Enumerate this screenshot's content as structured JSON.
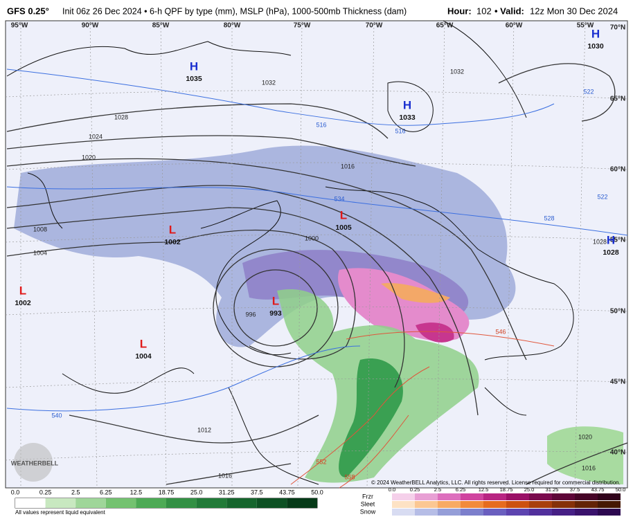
{
  "header": {
    "title": "GFS 0.25°",
    "subtitle": "Init 06z 26 Dec 2024 • 6-h QPF by type (mm), MSLP (hPa), 1000-500mb Thickness (dam)",
    "hour_label": "Hour:",
    "hour": "102",
    "valid_label": "• Valid:",
    "valid": "12z Mon 30 Dec 2024"
  },
  "map": {
    "longitudes": [
      "95°W",
      "90°W",
      "85°W",
      "80°W",
      "75°W",
      "70°W",
      "65°W",
      "60°W",
      "55°W"
    ],
    "latitudes": [
      "70°N",
      "65°N",
      "60°N",
      "55°N",
      "50°N",
      "45°N",
      "40°N"
    ],
    "pressure_centers": [
      {
        "type": "H",
        "value": "1035"
      },
      {
        "type": "H",
        "value": "1033"
      },
      {
        "type": "H",
        "value": "1030"
      },
      {
        "type": "H",
        "value": "1028"
      },
      {
        "type": "L",
        "value": "1005"
      },
      {
        "type": "L",
        "value": "1002"
      },
      {
        "type": "L",
        "value": "1002"
      },
      {
        "type": "L",
        "value": "993"
      },
      {
        "type": "L",
        "value": "1004"
      }
    ],
    "isobar_labels": [
      "1032",
      "1032",
      "1028",
      "1024",
      "1020",
      "1016",
      "1008",
      "1004",
      "1000",
      "996",
      "1012",
      "1016",
      "1020",
      "1016",
      "1028"
    ],
    "thickness_labels": [
      "522",
      "516",
      "516",
      "534",
      "528",
      "522",
      "540",
      "546",
      "552",
      "558"
    ]
  },
  "legend": {
    "rain_scale": [
      "0.0",
      "0.25",
      "2.5",
      "6.25",
      "12.5",
      "18.75",
      "25.0",
      "31.25",
      "37.5",
      "43.75",
      "50.0"
    ],
    "note": "All values represent liquid equivalent",
    "types": [
      "Frzr",
      "Sleet",
      "Snow"
    ],
    "mixed_scale": [
      "0.0",
      "0.25",
      "2.5",
      "6.25",
      "12.5",
      "18.75",
      "25.0",
      "31.25",
      "37.5",
      "43.75",
      "50.0"
    ]
  },
  "footer": {
    "copyright": "© 2024 WeatherBELL Analytics, LLC. All rights reserved. License required for commercial distribution.",
    "logo": "WEATHERBELL"
  }
}
